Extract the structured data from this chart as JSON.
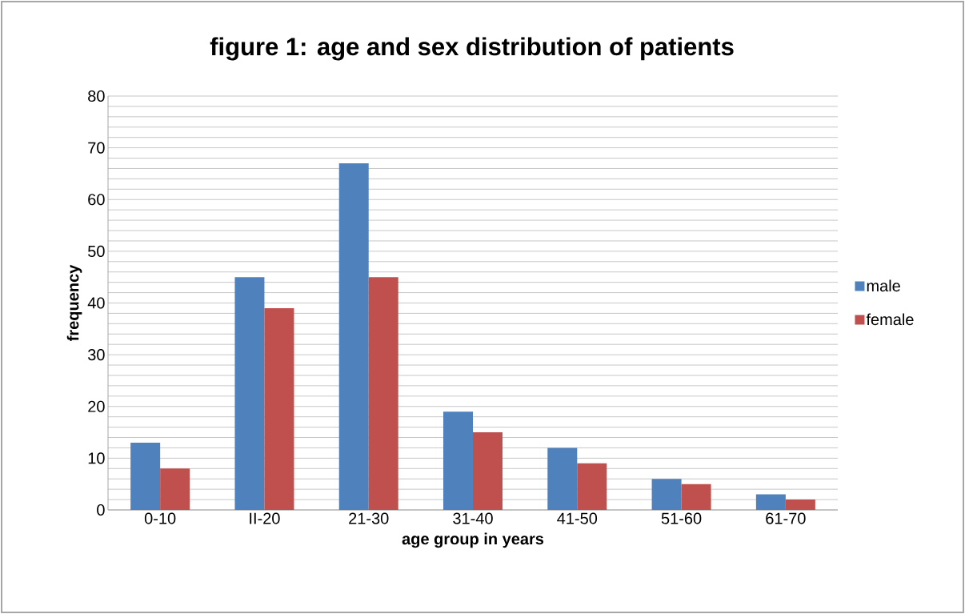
{
  "chart_data": {
    "type": "bar",
    "title": "figure 1: age and sex distribution of patients",
    "xlabel": "age group in years",
    "ylabel": "frequency",
    "categories": [
      "0-10",
      "II-20",
      "21-30",
      "31-40",
      "41-50",
      "51-60",
      "61-70"
    ],
    "series": [
      {
        "name": "male",
        "color": "#4f81bd",
        "values": [
          13,
          45,
          67,
          19,
          12,
          6,
          3
        ]
      },
      {
        "name": "female",
        "color": "#c0504d",
        "values": [
          8,
          39,
          45,
          15,
          9,
          5,
          2
        ]
      }
    ],
    "ylim": [
      0,
      80
    ],
    "yticks": [
      0,
      {
        "value": 2,
        "label": null
      },
      {
        "value": 4,
        "label": null
      },
      {
        "value": 6,
        "label": null
      },
      {
        "value": 8,
        "label": null
      },
      10,
      {
        "value": 12,
        "label": null
      },
      {
        "value": 14,
        "label": null
      },
      {
        "value": 16,
        "label": null
      },
      {
        "value": 18,
        "label": null
      },
      20,
      {
        "value": 22,
        "label": null
      },
      {
        "value": 24,
        "label": null
      },
      {
        "value": 26,
        "label": null
      },
      {
        "value": 28,
        "label": null
      },
      30,
      {
        "value": 32,
        "label": null
      },
      {
        "value": 34,
        "label": null
      },
      {
        "value": 36,
        "label": null
      },
      {
        "value": 38,
        "label": null
      },
      40,
      {
        "value": 42,
        "label": null
      },
      {
        "value": 44,
        "label": null
      },
      {
        "value": 46,
        "label": null
      },
      {
        "value": 48,
        "label": null
      },
      50,
      {
        "value": 52,
        "label": null
      },
      {
        "value": 54,
        "label": null
      },
      {
        "value": 56,
        "label": null
      },
      {
        "value": 58,
        "label": null
      },
      60,
      {
        "value": 62,
        "label": null
      },
      {
        "value": 64,
        "label": null
      },
      {
        "value": 66,
        "label": null
      },
      {
        "value": 68,
        "label": null
      },
      70,
      {
        "value": 72,
        "label": null
      },
      {
        "value": 74,
        "label": null
      },
      {
        "value": 76,
        "label": null
      },
      {
        "value": 78,
        "label": null
      },
      80
    ],
    "grid": "y",
    "legend": "right"
  }
}
